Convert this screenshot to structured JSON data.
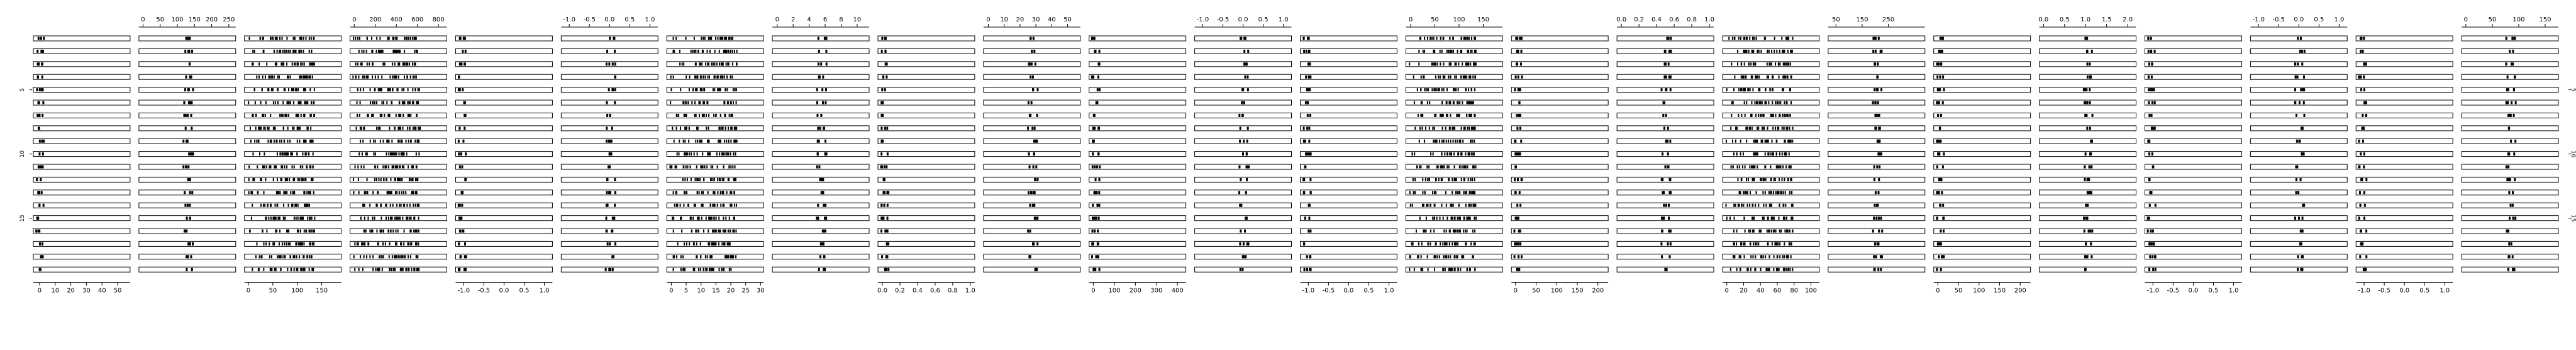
{
  "chart_data": {
    "type": "lattice-stripplot-matrix",
    "grid": false,
    "legend": "none",
    "rows": 19,
    "panel_ticks": [
      {
        "pos": "bottom",
        "labels": [
          "0",
          "10",
          "20",
          "30",
          "40",
          "50"
        ],
        "range": [
          -4,
          58
        ]
      },
      {
        "pos": "top",
        "labels": [
          "0",
          "50",
          "100",
          "150",
          "200",
          "250"
        ],
        "range": [
          -12,
          270
        ]
      },
      {
        "pos": "bottom",
        "labels": [
          "0",
          "50",
          "100",
          "150"
        ],
        "range": [
          -8,
          190
        ]
      },
      {
        "pos": "top",
        "labels": [
          "0",
          "200",
          "400",
          "600",
          "800"
        ],
        "range": [
          -40,
          880
        ]
      },
      {
        "pos": "bottom",
        "labels": [
          "-1.0",
          "-0.5",
          "0.0",
          "0.5",
          "1.0"
        ],
        "range": [
          -1.2,
          1.2
        ]
      },
      {
        "pos": "top",
        "labels": [
          "-1.0",
          "-0.5",
          "0.0",
          "0.5",
          "1.0"
        ],
        "range": [
          -1.2,
          1.2
        ]
      },
      {
        "pos": "bottom",
        "labels": [
          "0",
          "5",
          "10",
          "15",
          "20",
          "25",
          "30"
        ],
        "range": [
          -1.5,
          31
        ]
      },
      {
        "pos": "top",
        "labels": [
          "0",
          "2",
          "4",
          "6",
          "8",
          "10"
        ],
        "range": [
          -0.6,
          11.5
        ]
      },
      {
        "pos": "bottom",
        "labels": [
          "0.0",
          "0.2",
          "0.4",
          "0.6",
          "0.8",
          "1.0"
        ],
        "range": [
          -0.05,
          1.05
        ]
      },
      {
        "pos": "top",
        "labels": [
          "0",
          "10",
          "20",
          "30",
          "40",
          "50"
        ],
        "range": [
          -3,
          58
        ]
      },
      {
        "pos": "bottom",
        "labels": [
          "0",
          "100",
          "200",
          "300",
          "400"
        ],
        "range": [
          -20,
          440
        ]
      },
      {
        "pos": "top",
        "labels": [
          "-1.0",
          "-0.5",
          "0.0",
          "0.5",
          "1.0"
        ],
        "range": [
          -1.2,
          1.2
        ]
      },
      {
        "pos": "bottom",
        "labels": [
          "-1.0",
          "-0.5",
          "0.0",
          "0.5",
          "1.0"
        ],
        "range": [
          -1.2,
          1.2
        ]
      },
      {
        "pos": "top",
        "labels": [
          "0",
          "50",
          "100",
          "150"
        ],
        "range": [
          -10,
          190
        ]
      },
      {
        "pos": "bottom",
        "labels": [
          "0",
          "50",
          "100",
          "150",
          "200"
        ],
        "range": [
          -10,
          225
        ]
      },
      {
        "pos": "top",
        "labels": [
          "0.0",
          "0.2",
          "0.4",
          "0.6",
          "0.8",
          "1.0"
        ],
        "range": [
          -0.05,
          1.05
        ]
      },
      {
        "pos": "bottom",
        "labels": [
          "0",
          "20",
          "40",
          "60",
          "80",
          "100"
        ],
        "range": [
          -5,
          110
        ]
      },
      {
        "pos": "top",
        "labels": [
          "50",
          "150",
          "250"
        ],
        "range": [
          20,
          390
        ]
      },
      {
        "pos": "bottom",
        "labels": [
          "0",
          "50",
          "100",
          "150",
          "200"
        ],
        "range": [
          -10,
          225
        ]
      },
      {
        "pos": "top",
        "labels": [
          "0.0",
          "0.5",
          "1.0",
          "1.5",
          "2.0"
        ],
        "range": [
          -0.1,
          2.2
        ]
      },
      {
        "pos": "bottom",
        "labels": [
          "-1.0",
          "-0.5",
          "0.0",
          "0.5",
          "1.0"
        ],
        "range": [
          -1.2,
          1.2
        ]
      },
      {
        "pos": "top",
        "labels": [
          "-1.0",
          "-0.5",
          "0.0",
          "0.5",
          "1.0"
        ],
        "range": [
          -1.2,
          1.2
        ]
      },
      {
        "pos": "bottom",
        "labels": [
          "-1.0",
          "-0.5",
          "0.0",
          "0.5",
          "1.0"
        ],
        "range": [
          -1.2,
          1.2
        ]
      },
      {
        "pos": "top",
        "labels": [
          "0",
          "50",
          "100",
          "150"
        ],
        "range": [
          -8,
          175
        ]
      }
    ],
    "left_axis_labels": [
      "5",
      "10",
      "15"
    ],
    "right_axis_labels": [
      "5",
      "10",
      "15"
    ]
  }
}
